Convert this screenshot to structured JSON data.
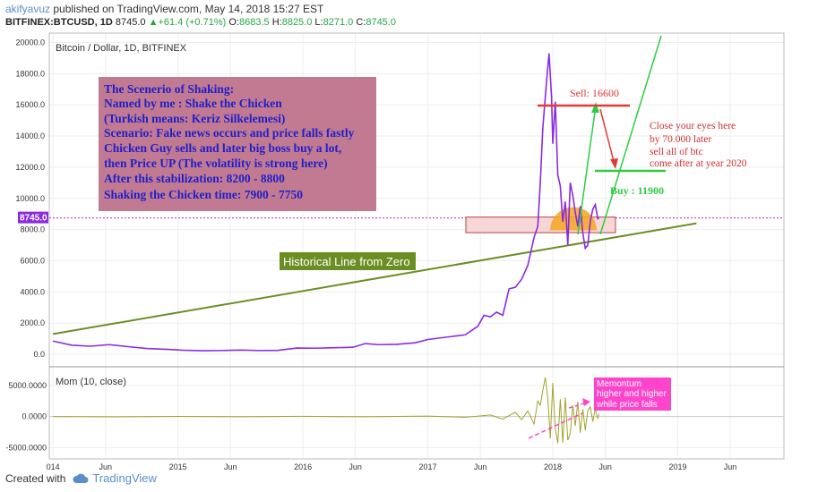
{
  "header": {
    "author": "akifyavuz",
    "published": "published on TradingView.com, May 14, 2018 15:27 EST",
    "symbol": "BITFINEX:BTCUSD, 1D",
    "last": "8745.0",
    "change": "+61.4 (+0.71%)",
    "o_label": "O:",
    "o": "8683.5",
    "h_label": "H:",
    "h": "8825.0",
    "l_label": "L:",
    "l": "8271.0",
    "c_label": "C:",
    "c": "8745.0"
  },
  "footer": {
    "created_with": "Created with",
    "brand": "TradingView"
  },
  "colors": {
    "price": "#8a2be2",
    "trend": "#6b8e23",
    "momentum": "#a3a32a",
    "sell": "#e53935",
    "buy": "#2ecc40",
    "note_box": "#c0708e",
    "pink": "#ff44cc"
  },
  "chart_data": [
    {
      "type": "line",
      "title": "Bitcoin / Dollar, 1D, BITFINEX",
      "ylim": [
        -800,
        20600
      ],
      "y_ticks": [
        "20000.0",
        "18000.0",
        "16000.0",
        "14000.0",
        "12000.0",
        "10000.0",
        "8000.0",
        "6000.0",
        "4000.0",
        "2000.0",
        "0.0"
      ],
      "last_price_label": "8745.0",
      "x_ticks": [
        "014",
        "Jun",
        "2015",
        "Jun",
        "2016",
        "Jun",
        "2017",
        "Jun",
        "2018",
        "Jun",
        "2019",
        "Jun"
      ],
      "series": [
        {
          "x": [
            2014.0,
            2014.15,
            2014.3,
            2014.45,
            2014.6,
            2014.75,
            2014.9,
            2015.05,
            2015.2,
            2015.35,
            2015.5,
            2015.65,
            2015.8,
            2015.95,
            2016.1,
            2016.25,
            2016.4,
            2016.5,
            2016.6,
            2016.75,
            2016.9,
            2017.0,
            2017.1,
            2017.2,
            2017.3,
            2017.4,
            2017.45,
            2017.5,
            2017.55,
            2017.6,
            2017.65,
            2017.7,
            2017.75,
            2017.8,
            2017.85,
            2017.88,
            2017.9,
            2017.92,
            2017.95,
            2017.97,
            2017.99,
            2018.0,
            2018.02,
            2018.04,
            2018.06,
            2018.08,
            2018.1,
            2018.12,
            2018.14,
            2018.16,
            2018.18,
            2018.2,
            2018.22,
            2018.24,
            2018.26,
            2018.28,
            2018.3,
            2018.32,
            2018.34,
            2018.36,
            2018.37
          ],
          "values": [
            850,
            580,
            520,
            620,
            490,
            370,
            320,
            260,
            230,
            240,
            270,
            240,
            250,
            400,
            390,
            420,
            450,
            690,
            620,
            640,
            740,
            950,
            1050,
            1150,
            1250,
            1800,
            2500,
            2400,
            2700,
            2500,
            4200,
            4300,
            4800,
            5700,
            7500,
            8200,
            11000,
            14500,
            17500,
            19300,
            16500,
            13500,
            16200,
            11500,
            10800,
            8500,
            9800,
            7000,
            11000,
            10200,
            9100,
            8200,
            9500,
            7800,
            6800,
            7000,
            8500,
            9300,
            9600,
            8700,
            8745
          ]
        }
      ],
      "trendline": {
        "x": [
          2014.0,
          2019.15
        ],
        "values": [
          1300,
          8400
        ]
      },
      "annotations": {
        "main_note": [
          "The Scenerio of Shaking:",
          "Named by me : Shake the Chicken",
          "(Turkish means: Keriz Silkelemesi)",
          "Scenario: Fake news occurs and price falls fastly",
          "Chicken Guy sells and later big boss buy a lot,",
          "then Price UP  (The volatility is strong here)",
          "After this stabilization: 8200 - 8800",
          "Shaking the Chicken time: 7900 - 7750"
        ],
        "historical_line": "Historical Line from Zero",
        "sell": "Sell: 16600",
        "buy": "Buy : 11900",
        "close_eyes": [
          "Close your eyes here",
          "by 70.000  later",
          "sell all of btc",
          "come after at  year 2020"
        ]
      }
    },
    {
      "type": "line",
      "title": "Mom (10, close)",
      "ylim": [
        -6800,
        8000
      ],
      "y_ticks": [
        "5000.0000",
        "0.0000",
        "-5000.0000"
      ],
      "series": [
        {
          "x": [
            2014.0,
            2014.5,
            2015.0,
            2015.5,
            2016.0,
            2016.5,
            2017.0,
            2017.3,
            2017.5,
            2017.6,
            2017.7,
            2017.75,
            2017.8,
            2017.85,
            2017.88,
            2017.9,
            2017.92,
            2017.94,
            2017.96,
            2017.98,
            2018.0,
            2018.02,
            2018.04,
            2018.06,
            2018.08,
            2018.1,
            2018.12,
            2018.14,
            2018.16,
            2018.18,
            2018.2,
            2018.22,
            2018.24,
            2018.26,
            2018.28,
            2018.3,
            2018.32,
            2018.34,
            2018.36,
            2018.37
          ],
          "values": [
            0,
            -40,
            30,
            -20,
            40,
            -30,
            80,
            -120,
            250,
            -400,
            700,
            -500,
            900,
            -1200,
            2500,
            1800,
            4200,
            6300,
            3000,
            -3500,
            5400,
            -2000,
            -4300,
            2800,
            -4200,
            3100,
            -3800,
            -2700,
            1800,
            -1500,
            2400,
            -2600,
            1200,
            -2200,
            900,
            1600,
            -800,
            1200,
            -300,
            400
          ]
        }
      ],
      "annotations": {
        "momentum_note": [
          "Memontum",
          "higher and higher",
          "while price falls"
        ]
      }
    }
  ]
}
